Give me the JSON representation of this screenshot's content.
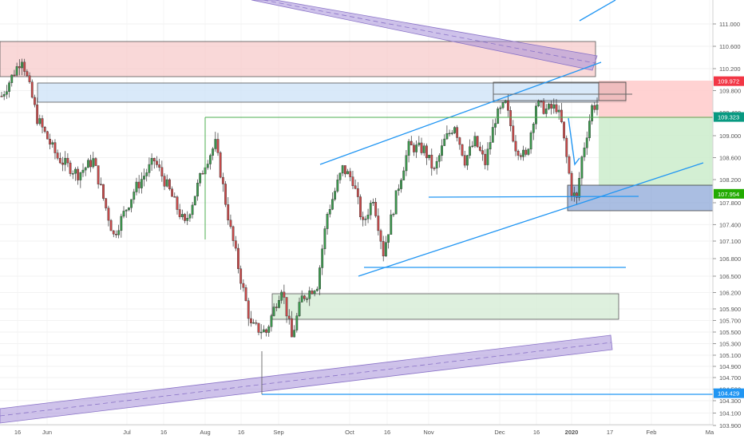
{
  "chart_data": {
    "type": "candlestick",
    "symbol": "",
    "y_axis": {
      "ylim": [
        103.78,
        111.38
      ],
      "tick_labels": [
        "111.000",
        "110.600",
        "110.200",
        "109.800",
        "109.400",
        "109.000",
        "108.600",
        "108.200",
        "107.800",
        "107.400",
        "107.100",
        "106.800",
        "106.500",
        "106.200",
        "105.900",
        "105.700",
        "105.500",
        "105.300",
        "105.100",
        "104.900",
        "104.700",
        "104.500",
        "104.300",
        "104.100",
        "103.900"
      ],
      "tick_values": [
        111.0,
        110.6,
        110.2,
        109.8,
        109.4,
        109.0,
        108.6,
        108.2,
        107.8,
        107.4,
        107.1,
        106.8,
        106.5,
        106.2,
        105.9,
        105.7,
        105.5,
        105.3,
        105.1,
        104.9,
        104.7,
        104.5,
        104.3,
        104.1,
        103.9
      ]
    },
    "x_axis": {
      "tick_labels": [
        "16",
        "Jun",
        "Jul",
        "16",
        "Aug",
        "16",
        "Sep",
        "Oct",
        "16",
        "Nov",
        "Dec",
        "16",
        "2020",
        "17",
        "Feb",
        "Ma"
      ]
    },
    "price_labels": [
      {
        "text": "109.972",
        "value": 109.972,
        "color": "#f23645"
      },
      {
        "text": "109.323",
        "value": 109.323,
        "color": "#089981"
      },
      {
        "text": "107.954",
        "value": 107.954,
        "color": "#22ab00"
      },
      {
        "text": "104.429",
        "value": 104.429,
        "color": "#2196f3"
      }
    ],
    "waypoints": [
      {
        "i": 0,
        "v": 109.7
      },
      {
        "i": 8,
        "v": 110.4
      },
      {
        "i": 14,
        "v": 109.3
      },
      {
        "i": 22,
        "v": 108.6
      },
      {
        "i": 30,
        "v": 108.3
      },
      {
        "i": 36,
        "v": 108.55
      },
      {
        "i": 44,
        "v": 107.2
      },
      {
        "i": 52,
        "v": 108.0
      },
      {
        "i": 60,
        "v": 108.55
      },
      {
        "i": 66,
        "v": 108.0
      },
      {
        "i": 72,
        "v": 107.4
      },
      {
        "i": 80,
        "v": 108.5
      },
      {
        "i": 84,
        "v": 108.85
      },
      {
        "i": 90,
        "v": 107.3
      },
      {
        "i": 98,
        "v": 105.6
      },
      {
        "i": 104,
        "v": 105.5
      },
      {
        "i": 110,
        "v": 106.3
      },
      {
        "i": 114,
        "v": 105.4
      },
      {
        "i": 118,
        "v": 106.1
      },
      {
        "i": 124,
        "v": 106.35
      },
      {
        "i": 128,
        "v": 107.6
      },
      {
        "i": 134,
        "v": 108.4
      },
      {
        "i": 138,
        "v": 108.2
      },
      {
        "i": 142,
        "v": 107.4
      },
      {
        "i": 146,
        "v": 107.9
      },
      {
        "i": 150,
        "v": 106.9
      },
      {
        "i": 156,
        "v": 108.1
      },
      {
        "i": 160,
        "v": 108.8
      },
      {
        "i": 166,
        "v": 108.75
      },
      {
        "i": 170,
        "v": 108.35
      },
      {
        "i": 174,
        "v": 108.9
      },
      {
        "i": 178,
        "v": 109.2
      },
      {
        "i": 182,
        "v": 108.55
      },
      {
        "i": 186,
        "v": 108.9
      },
      {
        "i": 190,
        "v": 108.5
      },
      {
        "i": 194,
        "v": 109.3
      },
      {
        "i": 198,
        "v": 109.55
      },
      {
        "i": 202,
        "v": 108.8
      },
      {
        "i": 206,
        "v": 108.6
      },
      {
        "i": 210,
        "v": 109.55
      },
      {
        "i": 214,
        "v": 109.45
      },
      {
        "i": 218,
        "v": 109.5
      },
      {
        "i": 220,
        "v": 109.2
      },
      {
        "i": 224,
        "v": 108.0
      },
      {
        "i": 226,
        "v": 107.85
      },
      {
        "i": 228,
        "v": 108.6
      },
      {
        "i": 232,
        "v": 109.5
      },
      {
        "i": 234,
        "v": 109.55
      }
    ]
  }
}
